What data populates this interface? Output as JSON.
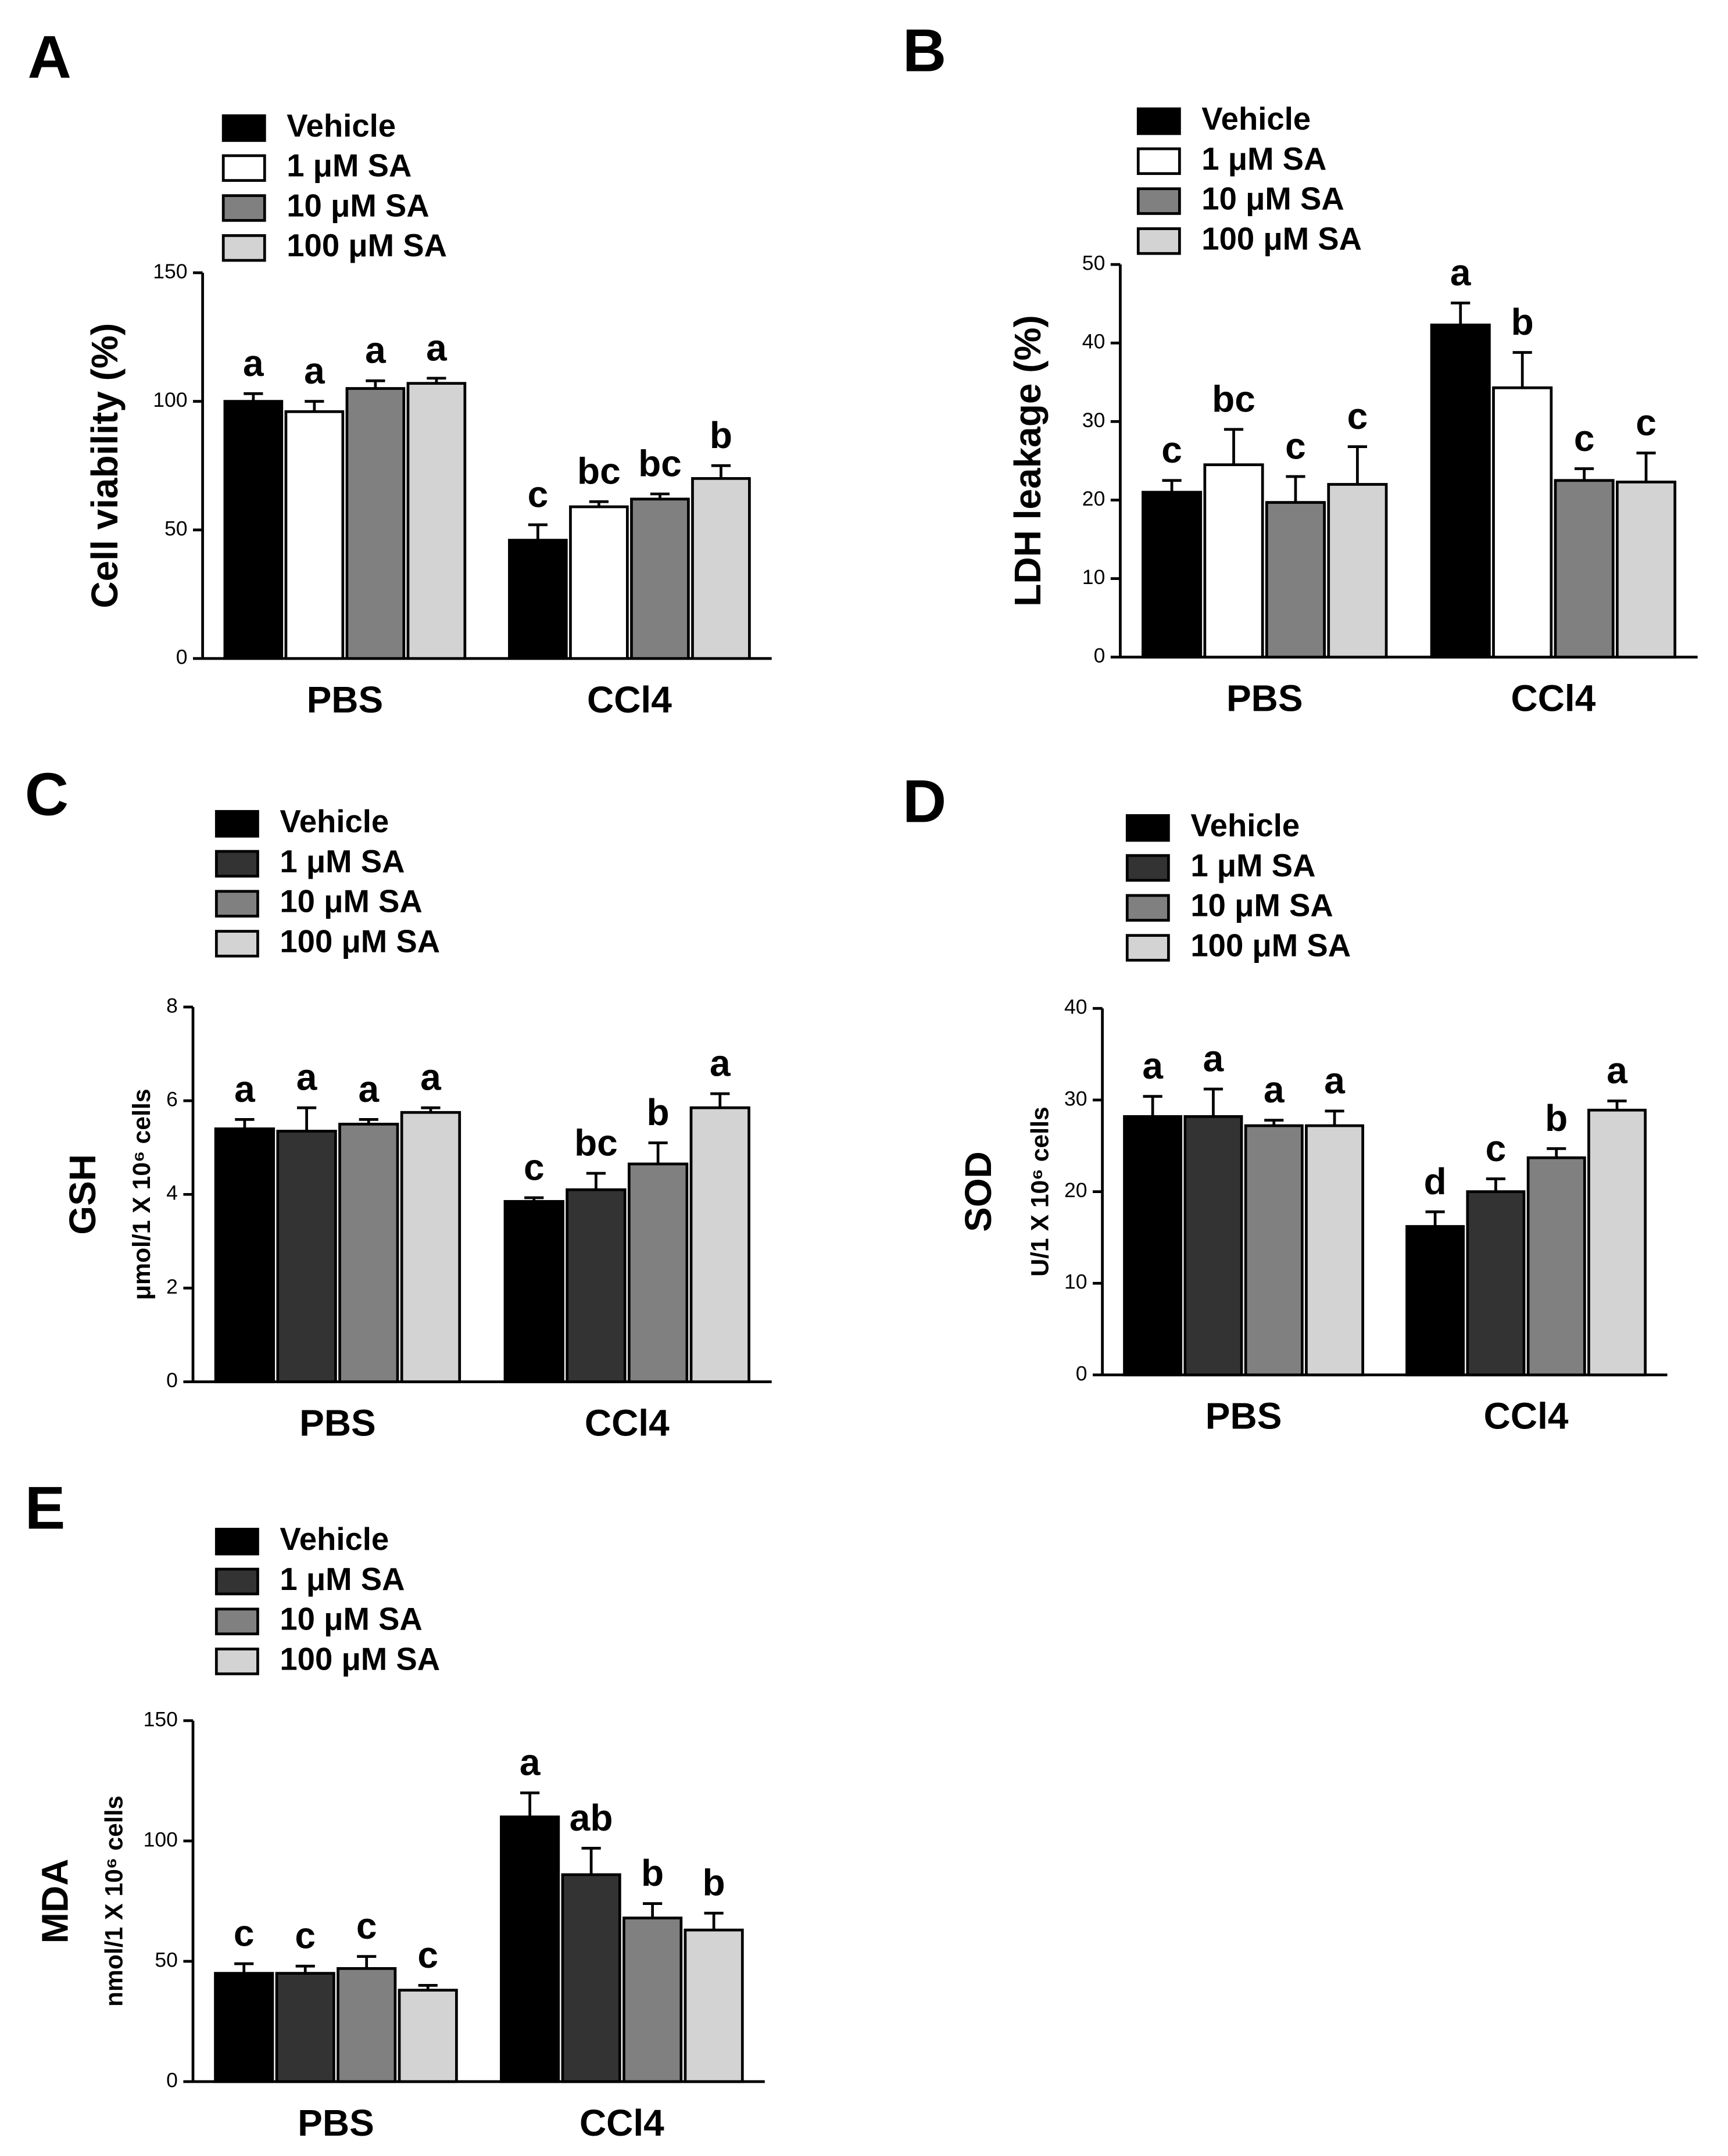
{
  "chart_data": [
    {
      "type": "bar",
      "panel": "A",
      "y_label": "Cell viability (%)",
      "categories": [
        "PBS",
        "CCl4"
      ],
      "ylim": [
        0,
        150
      ],
      "yticks": [
        0,
        50,
        100,
        150
      ],
      "series": [
        {
          "name": "Vehicle",
          "color": "#000000",
          "values": [
            100,
            46
          ],
          "errors": [
            3,
            6
          ],
          "labels": [
            "a",
            "c"
          ]
        },
        {
          "name": "1 μM SA",
          "color": "#ffffff",
          "values": [
            96,
            59
          ],
          "errors": [
            4,
            2
          ],
          "labels": [
            "a",
            "bc"
          ]
        },
        {
          "name": "10 μM SA",
          "color": "#808080",
          "values": [
            105,
            62
          ],
          "errors": [
            3,
            2
          ],
          "labels": [
            "a",
            "bc"
          ]
        },
        {
          "name": "100 μM SA",
          "color": "#d3d3d3",
          "values": [
            107,
            70
          ],
          "errors": [
            2,
            5
          ],
          "labels": [
            "a",
            "b"
          ]
        }
      ]
    },
    {
      "type": "bar",
      "panel": "B",
      "y_label": "LDH leakage (%)",
      "categories": [
        "PBS",
        "CCl4"
      ],
      "ylim": [
        0,
        50
      ],
      "yticks": [
        0,
        10,
        20,
        30,
        40,
        50
      ],
      "series": [
        {
          "name": "Vehicle",
          "color": "#000000",
          "values": [
            21,
            42.3
          ],
          "errors": [
            1.5,
            2.8
          ],
          "labels": [
            "c",
            "a"
          ]
        },
        {
          "name": "1 μM SA",
          "color": "#ffffff",
          "values": [
            24.5,
            34.3
          ],
          "errors": [
            4.5,
            4.5
          ],
          "labels": [
            "bc",
            "b"
          ]
        },
        {
          "name": "10 μM SA",
          "color": "#808080",
          "values": [
            19.7,
            22.5
          ],
          "errors": [
            3.3,
            1.5
          ],
          "labels": [
            "c",
            "c"
          ]
        },
        {
          "name": "100 μM SA",
          "color": "#d3d3d3",
          "values": [
            22,
            22.3
          ],
          "errors": [
            4.8,
            3.7
          ],
          "labels": [
            "c",
            "c"
          ]
        }
      ]
    },
    {
      "type": "bar",
      "panel": "C",
      "y_label": "GSH",
      "y_sublabel": "μmol/1 X 10⁶ cells",
      "categories": [
        "PBS",
        "CCl4"
      ],
      "ylim": [
        0,
        8
      ],
      "yticks": [
        0,
        2,
        4,
        6,
        8
      ],
      "series": [
        {
          "name": "Vehicle",
          "color": "#000000",
          "values": [
            5.4,
            3.85
          ],
          "errors": [
            0.2,
            0.08
          ],
          "labels": [
            "a",
            "c"
          ]
        },
        {
          "name": "1 μM SA",
          "color": "#333333",
          "values": [
            5.35,
            4.1
          ],
          "errors": [
            0.5,
            0.35
          ],
          "labels": [
            "a",
            "bc"
          ]
        },
        {
          "name": "10 μM SA",
          "color": "#808080",
          "values": [
            5.5,
            4.65
          ],
          "errors": [
            0.1,
            0.45
          ],
          "labels": [
            "a",
            "b"
          ]
        },
        {
          "name": "100 μM SA",
          "color": "#d3d3d3",
          "values": [
            5.75,
            5.85
          ],
          "errors": [
            0.1,
            0.3
          ],
          "labels": [
            "a",
            "a"
          ]
        }
      ]
    },
    {
      "type": "bar",
      "panel": "D",
      "y_label": "SOD",
      "y_sublabel": "U/1 X 10⁶ cells",
      "categories": [
        "PBS",
        "CCl4"
      ],
      "ylim": [
        0,
        40
      ],
      "yticks": [
        0,
        10,
        20,
        30,
        40
      ],
      "series": [
        {
          "name": "Vehicle",
          "color": "#000000",
          "values": [
            28.2,
            16.2
          ],
          "errors": [
            2.2,
            1.6
          ],
          "labels": [
            "a",
            "d"
          ]
        },
        {
          "name": "1 μM SA",
          "color": "#333333",
          "values": [
            28.2,
            20
          ],
          "errors": [
            3,
            1.4
          ],
          "labels": [
            "a",
            "c"
          ]
        },
        {
          "name": "10 μM SA",
          "color": "#808080",
          "values": [
            27.2,
            23.7
          ],
          "errors": [
            0.6,
            1
          ],
          "labels": [
            "a",
            "b"
          ]
        },
        {
          "name": "100 μM SA",
          "color": "#d3d3d3",
          "values": [
            27.2,
            28.9
          ],
          "errors": [
            1.6,
            1
          ],
          "labels": [
            "a",
            "a"
          ]
        }
      ]
    },
    {
      "type": "bar",
      "panel": "E",
      "y_label": "MDA",
      "y_sublabel": "nmol/1 X 10⁶ cells",
      "categories": [
        "PBS",
        "CCl4"
      ],
      "ylim": [
        0,
        150
      ],
      "yticks": [
        0,
        50,
        100,
        150
      ],
      "series": [
        {
          "name": "Vehicle",
          "color": "#000000",
          "values": [
            45,
            110
          ],
          "errors": [
            4,
            10
          ],
          "labels": [
            "c",
            "a"
          ]
        },
        {
          "name": "1 μM SA",
          "color": "#333333",
          "values": [
            45,
            86
          ],
          "errors": [
            3,
            11
          ],
          "labels": [
            "c",
            "ab"
          ]
        },
        {
          "name": "10 μM SA",
          "color": "#808080",
          "values": [
            47,
            68
          ],
          "errors": [
            5,
            6
          ],
          "labels": [
            "c",
            "b"
          ]
        },
        {
          "name": "100 μM SA",
          "color": "#d3d3d3",
          "values": [
            38,
            63
          ],
          "errors": [
            2,
            7
          ],
          "labels": [
            "c",
            "b"
          ]
        }
      ]
    }
  ]
}
